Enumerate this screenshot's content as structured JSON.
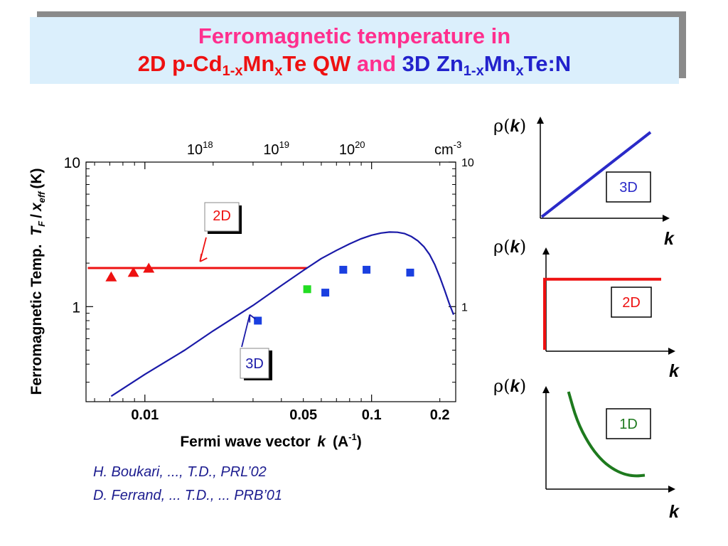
{
  "title": {
    "line1": "Ferromagnetic temperature in",
    "line2": {
      "p1": "2D p-Cd",
      "sub1": "1-x",
      "p2": "Mn",
      "sub2": "x",
      "p3": "Te QW",
      "conj": "and",
      "q1": "3D Zn",
      "sub3": "1-x",
      "q2": "Mn",
      "sub4": "x",
      "q3": "Te:N"
    }
  },
  "colors": {
    "red": "#ee1111",
    "blue": "#1a1aa8",
    "marker_blue": "#1a3fe0",
    "green": "#1e7a1e",
    "bright_green": "#22dd22",
    "title_pink": "#ff2f8e"
  },
  "chart_data": [
    {
      "type": "scatter",
      "xlabel_text": "Fermi wave vector",
      "xlabel_var": "k",
      "xlabel_unit": "(A",
      "xlabel_unit_sup": "-1",
      "xlabel_unit_end": ")",
      "ylabel_text": "Ferromagnetic Temp.",
      "ylabel_var_t": "T",
      "ylabel_sub_f": "F",
      "ylabel_slash": "/",
      "ylabel_var_x": "x",
      "ylabel_sub_eff": "eff",
      "ylabel_unit": "(K)",
      "x_scale": "log",
      "y_scale": "log",
      "xlim": [
        0.0055,
        0.235
      ],
      "ylim": [
        0.22,
        10
      ],
      "x_ticks": [
        {
          "value": 0.01,
          "label": "0.01"
        },
        {
          "value": 0.05,
          "label": "0.05"
        },
        {
          "value": 0.1,
          "label": "0.1"
        },
        {
          "value": 0.2,
          "label": "0.2"
        }
      ],
      "y_ticks": [
        {
          "value": 10,
          "label": "10"
        },
        {
          "value": 1,
          "label": "1"
        }
      ],
      "y_ticks_right": [
        {
          "value": 10,
          "label": "10"
        },
        {
          "value": 1,
          "label": "1"
        }
      ],
      "top_axis": {
        "unit": "cm",
        "unit_sup": "-3",
        "ticks": [
          {
            "x": 0.0175,
            "base": "10",
            "exp": "18"
          },
          {
            "x": 0.038,
            "base": "10",
            "exp": "19"
          },
          {
            "x": 0.082,
            "base": "10",
            "exp": "20"
          }
        ]
      },
      "series": [
        {
          "name": "2D",
          "kind": "line",
          "color": "#ee1111",
          "x": [
            0.0056,
            0.052
          ],
          "y": [
            1.85,
            1.85
          ]
        },
        {
          "name": "2D",
          "kind": "markers",
          "marker": "triangle",
          "color": "#ee1111",
          "x": [
            0.0071,
            0.0089,
            0.0104
          ],
          "y": [
            1.6,
            1.72,
            1.84
          ]
        },
        {
          "name": "3D",
          "kind": "line",
          "color": "#1a1aa8",
          "x": [
            0.0071,
            0.01,
            0.015,
            0.02,
            0.03,
            0.04,
            0.05,
            0.06,
            0.07,
            0.08,
            0.09,
            0.1,
            0.11,
            0.12,
            0.13,
            0.14,
            0.15,
            0.16,
            0.17,
            0.18,
            0.19,
            0.2,
            0.21,
            0.22,
            0.23
          ],
          "y": [
            0.24,
            0.34,
            0.5,
            0.68,
            1.02,
            1.4,
            1.78,
            2.15,
            2.45,
            2.72,
            2.95,
            3.12,
            3.23,
            3.28,
            3.27,
            3.2,
            3.05,
            2.85,
            2.6,
            2.3,
            1.95,
            1.6,
            1.3,
            1.05,
            0.88
          ]
        },
        {
          "name": "3D",
          "kind": "markers",
          "marker": "square",
          "color": "#1a3fe0",
          "x": [
            0.0315,
            0.0625,
            0.075,
            0.095,
            0.148
          ],
          "y": [
            0.8,
            1.25,
            1.8,
            1.8,
            1.72
          ]
        },
        {
          "name": "",
          "kind": "markers",
          "marker": "square",
          "color": "#22dd22",
          "x": [
            0.052
          ],
          "y": [
            1.32
          ]
        }
      ],
      "annotations": [
        {
          "label": "2D",
          "color": "#ee1111",
          "arrow_to": {
            "x": 0.0175,
            "y": 2.05
          }
        },
        {
          "label": "3D",
          "color": "#1a1aa8",
          "arrow_to": {
            "x": 0.029,
            "y": 0.88
          }
        }
      ]
    },
    {
      "type": "line",
      "ylabel_rho": "ρ(",
      "ylabel_var": "k",
      "ylabel_end": ")",
      "xlabel": "k",
      "label": "3D",
      "color": "#2a2ac8",
      "relation": "linear",
      "x": [
        0,
        1
      ],
      "y": [
        0,
        1
      ]
    },
    {
      "type": "line",
      "ylabel_rho": "ρ(",
      "ylabel_var": "k",
      "ylabel_end": ")",
      "xlabel": "k",
      "label": "2D",
      "color": "#ee1111",
      "relation": "constant",
      "x": [
        0,
        1
      ],
      "y": [
        0.73,
        0.73
      ]
    },
    {
      "type": "line",
      "ylabel_rho": "ρ(",
      "ylabel_var": "k",
      "ylabel_end": ")",
      "xlabel": "k",
      "label": "1D",
      "color": "#1e7a1e",
      "relation": "decreasing",
      "x": [
        0.18,
        0.25,
        0.35,
        0.45,
        0.55,
        0.65,
        0.75,
        0.83
      ],
      "y": [
        1.0,
        0.7,
        0.46,
        0.3,
        0.2,
        0.14,
        0.12,
        0.13
      ]
    }
  ],
  "citations": [
    "H. Boukari, ..., T.D., PRL’02",
    "D. Ferrand, ... T.D., ... PRB’01"
  ]
}
